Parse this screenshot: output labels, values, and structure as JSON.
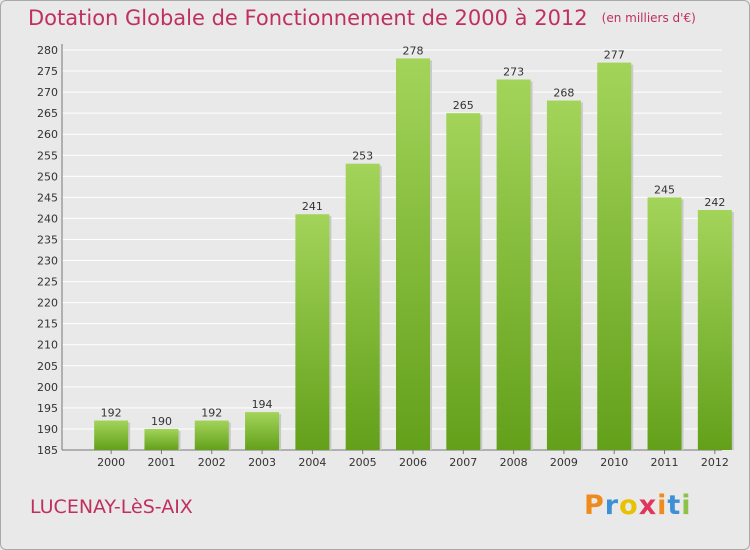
{
  "title": "Dotation Globale de Fonctionnement de 2000 à 2012",
  "subtitle": "(en milliers d'€)",
  "commune": "LUCENAY-LèS-AIX",
  "logo": {
    "letters": [
      "P",
      "r",
      "o",
      "x",
      "i",
      "t",
      "i"
    ],
    "colors": [
      "#f08a1c",
      "#3d8fd6",
      "#e8c200",
      "#e0365a",
      "#f08a1c",
      "#3d8fd6",
      "#8bc34a"
    ]
  },
  "colors": {
    "bar_top": "#a3d45a",
    "bar_bottom": "#63a01a",
    "title": "#c0305f",
    "grid": "#ffffff"
  },
  "chart_data": {
    "type": "bar",
    "categories": [
      "2000",
      "2001",
      "2002",
      "2003",
      "2004",
      "2005",
      "2006",
      "2007",
      "2008",
      "2009",
      "2010",
      "2011",
      "2012"
    ],
    "values": [
      192,
      190,
      192,
      194,
      241,
      253,
      278,
      265,
      273,
      268,
      277,
      245,
      242
    ],
    "ylim": [
      185,
      280
    ],
    "yticks": [
      185,
      190,
      195,
      200,
      205,
      210,
      215,
      220,
      225,
      230,
      235,
      240,
      245,
      250,
      255,
      260,
      265,
      270,
      275,
      280
    ],
    "grid": true,
    "xlabel": "",
    "ylabel": ""
  }
}
